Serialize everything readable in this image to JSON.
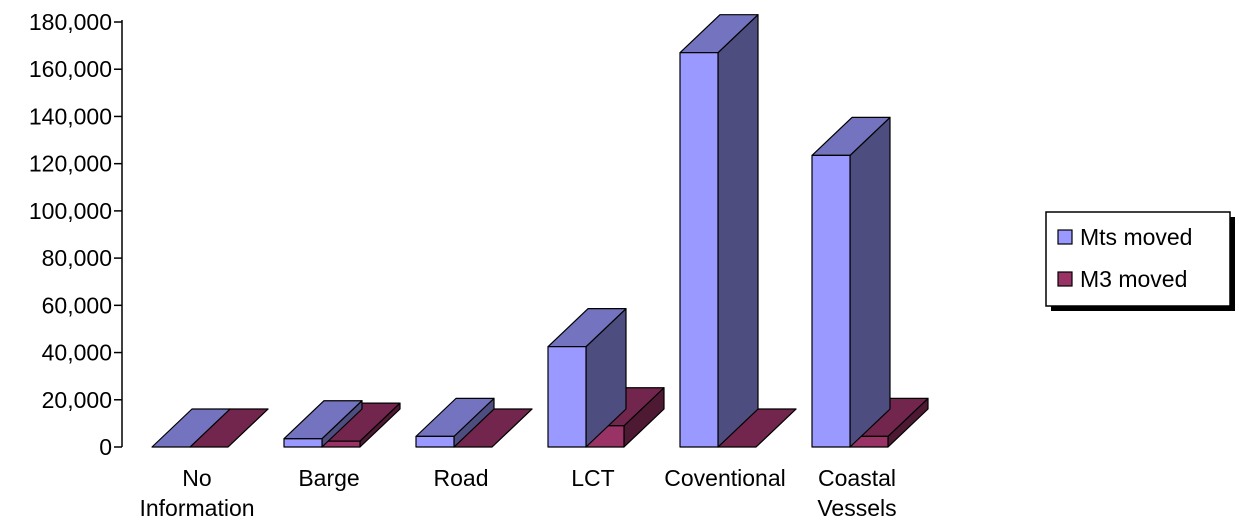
{
  "chart_data": {
    "type": "bar",
    "categories": [
      [
        "No",
        "Information"
      ],
      [
        "Barge"
      ],
      [
        "Road"
      ],
      [
        "LCT"
      ],
      [
        "Coventional"
      ],
      [
        "Coastal",
        "Vessels"
      ]
    ],
    "series": [
      {
        "name": "Mts moved",
        "values": [
          0,
          3500,
          4500,
          42500,
          167000,
          123500
        ]
      },
      {
        "name": "M3 moved",
        "values": [
          0,
          2500,
          0,
          9000,
          0,
          4500
        ]
      }
    ],
    "y_ticks": [
      "0",
      "20,000",
      "40,000",
      "60,000",
      "80,000",
      "100,000",
      "120,000",
      "140,000",
      "160,000",
      "180,000"
    ],
    "ylim": [
      0,
      180000
    ],
    "legend_position": "right",
    "grid": false,
    "colors": {
      "series_front": [
        "#9999ff",
        "#993366"
      ],
      "series_side": [
        "#4d4d80",
        "#4d1933"
      ],
      "series_top": [
        "#7373bf",
        "#73264d"
      ],
      "axis": "#000000",
      "background": "#ffffff"
    }
  }
}
